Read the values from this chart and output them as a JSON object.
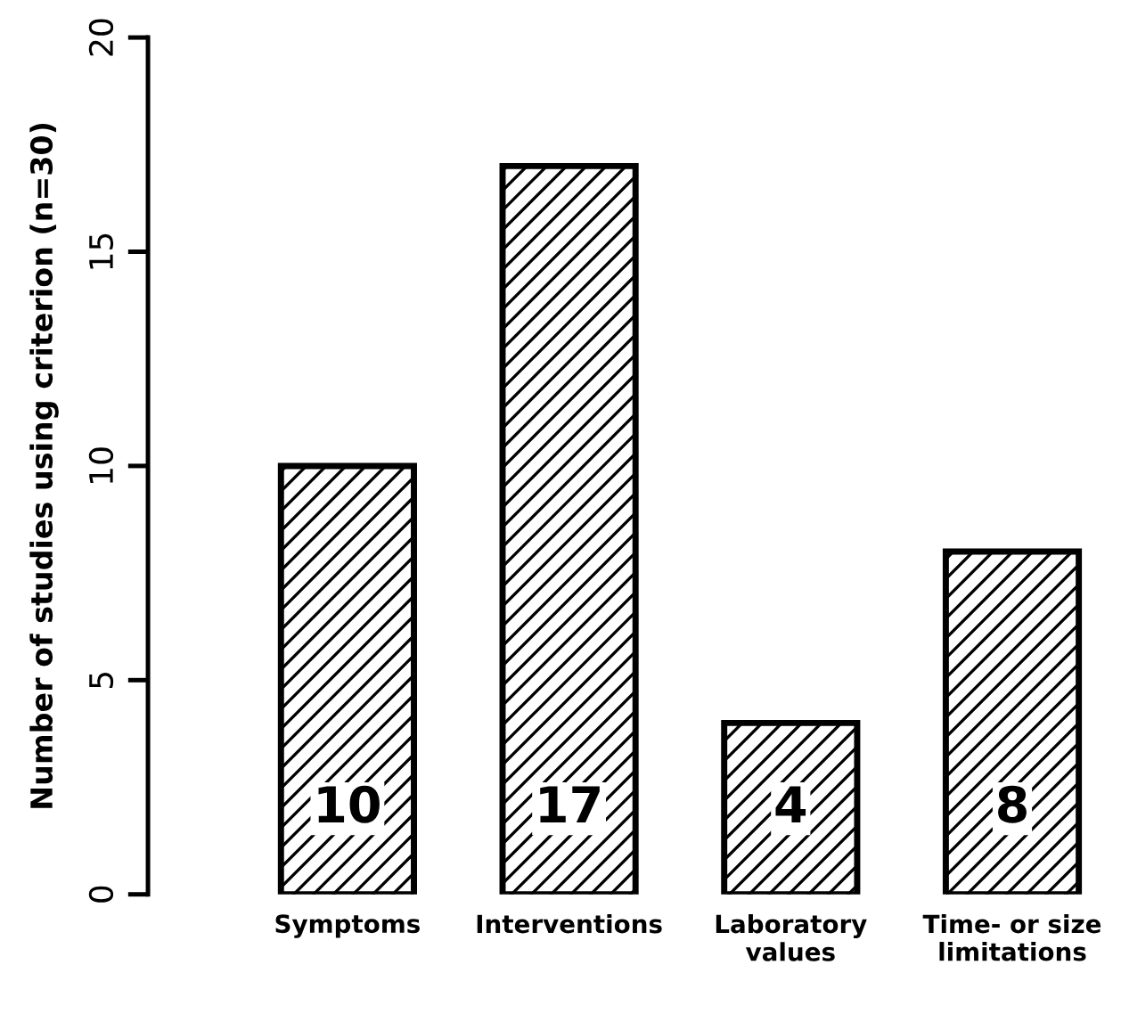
{
  "chart_data": {
    "type": "bar",
    "ylabel": "Number of studies using criterion (n=30)",
    "categories": [
      "Symptoms",
      "Interventions",
      "Laboratory\nvalues",
      "Time- or size\nlimitations"
    ],
    "values": [
      10,
      17,
      4,
      8
    ],
    "color": "#000000",
    "ylim": [
      0,
      20
    ],
    "yticks": [
      0,
      5,
      10,
      15,
      20
    ],
    "grid": false,
    "legend": false,
    "data_labels": true
  }
}
